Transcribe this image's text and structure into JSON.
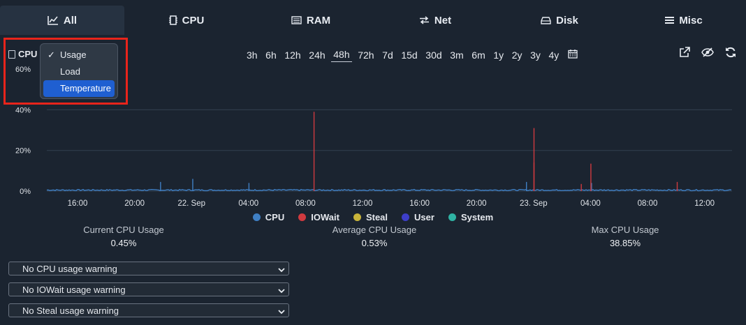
{
  "tabs": [
    {
      "label": "All",
      "icon": "chart-line-icon",
      "active": true
    },
    {
      "label": "CPU",
      "icon": "chip-icon",
      "active": false
    },
    {
      "label": "RAM",
      "icon": "memory-icon",
      "active": false
    },
    {
      "label": "Net",
      "icon": "arrows-exchange-icon",
      "active": false
    },
    {
      "label": "Disk",
      "icon": "drive-icon",
      "active": false
    },
    {
      "label": "Misc",
      "icon": "hamburger-icon",
      "active": false
    }
  ],
  "chart_header": {
    "label": "CPU"
  },
  "mode_dropdown": {
    "items": [
      {
        "label": "Usage",
        "checked": true
      },
      {
        "label": "Load",
        "checked": false
      },
      {
        "label": "Temperature",
        "checked": false,
        "highlighted": true
      }
    ]
  },
  "ranges": [
    "3h",
    "6h",
    "12h",
    "24h",
    "48h",
    "72h",
    "7d",
    "15d",
    "30d",
    "3m",
    "6m",
    "1y",
    "2y",
    "3y",
    "4y"
  ],
  "active_range": "48h",
  "chart_data": {
    "type": "line",
    "y_ticks": [
      "60%",
      "40%",
      "20%",
      "0%"
    ],
    "x_ticks": [
      "16:00",
      "20:00",
      "22. Sep",
      "04:00",
      "08:00",
      "12:00",
      "16:00",
      "20:00",
      "23. Sep",
      "04:00",
      "08:00",
      "12:00"
    ],
    "ylim": [
      0,
      60
    ],
    "series": [
      {
        "name": "CPU",
        "color": "#3f7fc4",
        "spikes": [
          [
            0.166,
            4.5
          ],
          [
            0.213,
            6
          ],
          [
            0.295,
            4
          ],
          [
            0.7,
            4.5
          ],
          [
            0.795,
            4
          ]
        ]
      },
      {
        "name": "IOWait",
        "color": "#d03a3f",
        "spikes": [
          [
            0.39,
            39
          ],
          [
            0.711,
            31
          ],
          [
            0.711,
            14
          ],
          [
            0.794,
            13.5
          ],
          [
            0.92,
            4.5
          ],
          [
            0.78,
            3.5
          ]
        ]
      },
      {
        "name": "Steal",
        "color": "#c8b43a",
        "spikes": []
      },
      {
        "name": "User",
        "color": "#3d3ec9",
        "spikes": []
      },
      {
        "name": "System",
        "color": "#2fb3a4",
        "spikes": []
      }
    ],
    "baseline": 0.5
  },
  "stats": [
    {
      "label": "Current CPU Usage",
      "value": "0.45%"
    },
    {
      "label": "Average CPU Usage",
      "value": "0.53%"
    },
    {
      "label": "Max CPU Usage",
      "value": "38.85%"
    }
  ],
  "warnings": [
    {
      "label": "No CPU usage warning"
    },
    {
      "label": "No IOWait usage warning"
    },
    {
      "label": "No Steal usage warning"
    }
  ]
}
